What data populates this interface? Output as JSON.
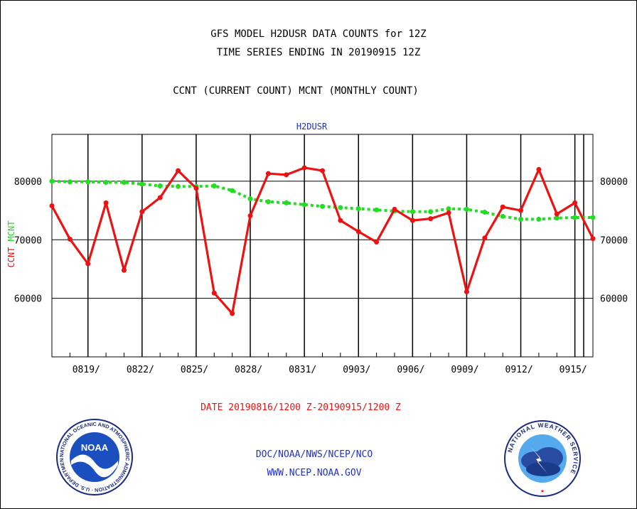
{
  "header": {
    "line1": "GFS MODEL H2DUSR DATA COUNTS for 12Z",
    "line2": "TIME SERIES ENDING IN 20190915 12Z",
    "line3": "CCNT (CURRENT COUNT) MCNT (MONTHLY COUNT)"
  },
  "colors": {
    "ccnt": "#ee1111",
    "mcnt": "#22dd22",
    "plot_title": "#2030c8",
    "footer": "#2030c8"
  },
  "chart_data": {
    "type": "line",
    "title": "H2DUSR",
    "ylabel_ccnt": "CCNT",
    "ylabel_mcnt": "MCNT",
    "ylim": [
      50000,
      88000
    ],
    "yticks": [
      60000,
      70000,
      80000
    ],
    "ytick_labels": [
      "60000",
      "70000",
      "80000"
    ],
    "x_start": "20190816",
    "x_end": "20190915",
    "x_tick_labels": [
      "0819/",
      "0822/",
      "0825/",
      "0828/",
      "0831/",
      "0903/",
      "0906/",
      "0909/",
      "0912/",
      "0915/"
    ],
    "x_day_index": [
      0,
      1,
      2,
      3,
      4,
      5,
      6,
      7,
      8,
      9,
      10,
      11,
      12,
      13,
      14,
      15,
      16,
      17,
      18,
      19,
      20,
      21,
      22,
      23,
      24,
      25,
      26,
      27,
      28,
      29,
      30
    ],
    "grid": true,
    "series": [
      {
        "name": "CCNT",
        "values": [
          75800,
          70100,
          65900,
          76300,
          64800,
          74800,
          77200,
          81800,
          78800,
          60900,
          57400,
          74100,
          81300,
          81100,
          82300,
          81800,
          73300,
          71400,
          69600,
          75200,
          73300,
          73600,
          74600,
          61100,
          70300,
          75600,
          75000,
          82000,
          74400,
          76300,
          70200
        ]
      },
      {
        "name": "MCNT",
        "values": [
          80000,
          79900,
          79900,
          79800,
          79800,
          79500,
          79200,
          79100,
          79100,
          79200,
          78400,
          77000,
          76500,
          76300,
          76000,
          75700,
          75500,
          75300,
          75100,
          74900,
          74800,
          74800,
          75300,
          75200,
          74700,
          74000,
          73500,
          73500,
          73700,
          73800,
          73800
        ]
      }
    ]
  },
  "date_range": "DATE 20190816/1200 Z-20190915/1200 Z",
  "footer": {
    "line1": "DOC/NOAA/NWS/NCEP/NCO",
    "line2": "WWW.NCEP.NOAA.GOV"
  },
  "logos": {
    "left": "NOAA",
    "left_ring": "NATIONAL OCEANIC AND ATMOSPHERIC ADMINISTRATION · U.S. DEPARTMENT OF COMMERCE",
    "right_ring": "NATIONAL WEATHER SERVICE"
  }
}
